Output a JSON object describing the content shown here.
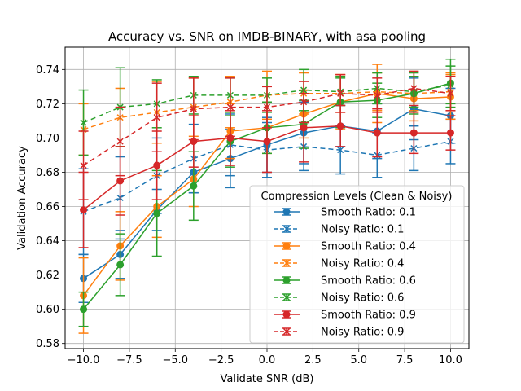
{
  "chart_data": {
    "type": "line",
    "title": "Accuracy vs. SNR on IMDB-BINARY, with asa pooling",
    "xlabel": "Validate SNR (dB)",
    "ylabel": "Validation Accuracy",
    "xlim": [
      -11.0,
      11.0
    ],
    "ylim": [
      0.577,
      0.753
    ],
    "xticks": [
      -10.0,
      -7.5,
      -5.0,
      -2.5,
      0.0,
      2.5,
      5.0,
      7.5,
      10.0
    ],
    "xtick_labels": [
      "−10.0",
      "−7.5",
      "−5.0",
      "−2.5",
      "0.0",
      "2.5",
      "5.0",
      "7.5",
      "10.0"
    ],
    "yticks": [
      0.58,
      0.6,
      0.62,
      0.64,
      0.66,
      0.68,
      0.7,
      0.72,
      0.74
    ],
    "ytick_labels": [
      "0.58",
      "0.60",
      "0.62",
      "0.64",
      "0.66",
      "0.68",
      "0.70",
      "0.72",
      "0.74"
    ],
    "grid": true,
    "legend": {
      "title": "Compression Levels (Clean & Noisy)",
      "placement": "lower-right"
    },
    "x": [
      -10,
      -8,
      -6,
      -4,
      -2,
      0,
      2,
      4,
      6,
      8,
      10
    ],
    "series": [
      {
        "name": "Smooth Ratio: 0.1",
        "color": "#1f77b4",
        "linestyle": "solid",
        "marker": "circle",
        "values": [
          0.618,
          0.632,
          0.658,
          0.68,
          0.688,
          0.696,
          0.703,
          0.707,
          0.704,
          0.717,
          0.713
        ],
        "errors": [
          0.014,
          0.014,
          0.012,
          0.012,
          0.017,
          0.016,
          0.018,
          0.012,
          0.016,
          0.018,
          0.016
        ]
      },
      {
        "name": "Noisy Ratio: 0.1",
        "color": "#1f77b4",
        "linestyle": "dashed",
        "marker": "x",
        "values": [
          0.657,
          0.665,
          0.678,
          0.688,
          0.696,
          0.693,
          0.695,
          0.693,
          0.69,
          0.694,
          0.698
        ],
        "errors": [
          0.025,
          0.024,
          0.022,
          0.02,
          0.018,
          0.016,
          0.014,
          0.014,
          0.013,
          0.013,
          0.013
        ]
      },
      {
        "name": "Smooth Ratio: 0.4",
        "color": "#ff7f0e",
        "linestyle": "solid",
        "marker": "circle",
        "values": [
          0.608,
          0.637,
          0.66,
          0.676,
          0.704,
          0.706,
          0.714,
          0.721,
          0.726,
          0.723,
          0.724
        ],
        "errors": [
          0.022,
          0.02,
          0.018,
          0.016,
          0.016,
          0.015,
          0.014,
          0.016,
          0.017,
          0.013,
          0.013
        ]
      },
      {
        "name": "Noisy Ratio: 0.4",
        "color": "#ff7f0e",
        "linestyle": "dashed",
        "marker": "x",
        "values": [
          0.705,
          0.712,
          0.715,
          0.718,
          0.721,
          0.725,
          0.726,
          0.726,
          0.727,
          0.726,
          0.727
        ],
        "errors": [
          0.015,
          0.017,
          0.018,
          0.017,
          0.015,
          0.014,
          0.012,
          0.011,
          0.011,
          0.01,
          0.011
        ]
      },
      {
        "name": "Smooth Ratio: 0.6",
        "color": "#2ca02c",
        "linestyle": "solid",
        "marker": "circle",
        "values": [
          0.6,
          0.626,
          0.656,
          0.672,
          0.698,
          0.706,
          0.708,
          0.721,
          0.722,
          0.726,
          0.732
        ],
        "errors": [
          0.01,
          0.018,
          0.025,
          0.02,
          0.015,
          0.015,
          0.014,
          0.015,
          0.01,
          0.012,
          0.014
        ]
      },
      {
        "name": "Noisy Ratio: 0.6",
        "color": "#2ca02c",
        "linestyle": "dashed",
        "marker": "x",
        "values": [
          0.709,
          0.718,
          0.72,
          0.725,
          0.725,
          0.725,
          0.728,
          0.727,
          0.729,
          0.727,
          0.731
        ],
        "errors": [
          0.019,
          0.023,
          0.014,
          0.011,
          0.01,
          0.01,
          0.012,
          0.008,
          0.009,
          0.009,
          0.011
        ]
      },
      {
        "name": "Smooth Ratio: 0.9",
        "color": "#d62728",
        "linestyle": "solid",
        "marker": "circle",
        "values": [
          0.658,
          0.675,
          0.684,
          0.698,
          0.7,
          0.698,
          0.706,
          0.707,
          0.703,
          0.703,
          0.703
        ],
        "errors": [
          0.022,
          0.02,
          0.02,
          0.015,
          0.016,
          0.018,
          0.02,
          0.012,
          0.014,
          0.012,
          0.01
        ]
      },
      {
        "name": "Noisy Ratio: 0.9",
        "color": "#d62728",
        "linestyle": "dashed",
        "marker": "x",
        "values": [
          0.684,
          0.698,
          0.712,
          0.717,
          0.718,
          0.718,
          0.721,
          0.726,
          0.725,
          0.729,
          0.726
        ],
        "errors": [
          0.02,
          0.02,
          0.02,
          0.018,
          0.017,
          0.012,
          0.012,
          0.011,
          0.01,
          0.01,
          0.01
        ]
      }
    ]
  }
}
